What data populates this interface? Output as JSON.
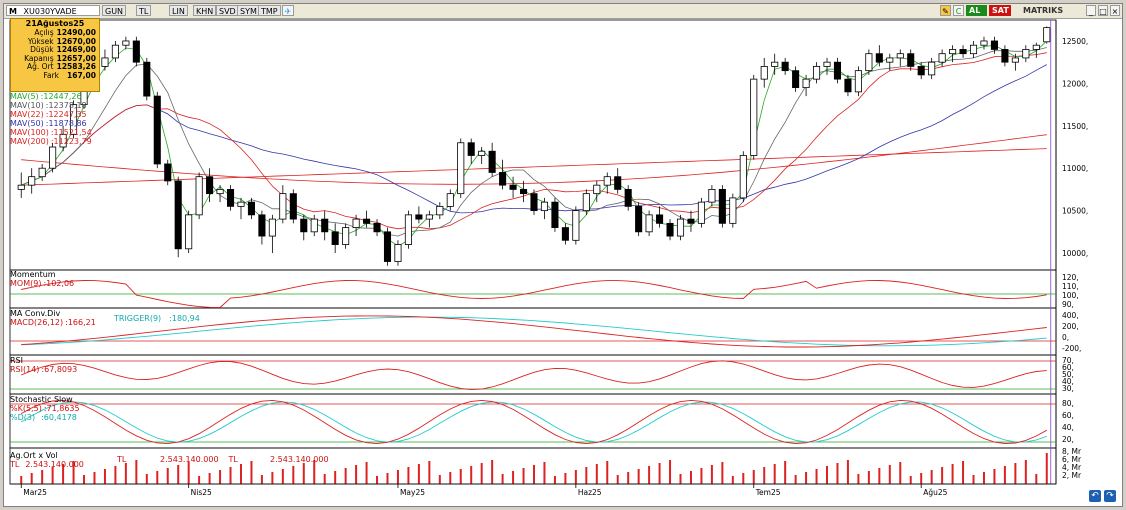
{
  "toolbar": {
    "symbol": "XU030YVADE",
    "m_label": "M",
    "buttons": [
      "GUN",
      "TL",
      "LIN",
      "KHN",
      "SVD",
      "SYM",
      "TMP"
    ],
    "al": "AL",
    "sat": "SAT",
    "brand": "MATRIKS"
  },
  "info": {
    "title": "21Ağustos25",
    "rows": [
      {
        "k": "Açılış",
        "v": "12490,00"
      },
      {
        "k": "Yüksek",
        "v": "12670,00"
      },
      {
        "k": "Düşük",
        "v": "12469,00"
      },
      {
        "k": "Kapanış",
        "v": "12657,00"
      },
      {
        "k": "Ağ. Ort",
        "v": "12583,26"
      },
      {
        "k": "Fark",
        "v": "167,00"
      }
    ]
  },
  "mav_legend": [
    {
      "label": "MAV(5)",
      "value": ":12447,26",
      "color": "#22aa22"
    },
    {
      "label": "MAV(10)",
      "value": ":12378,18",
      "color": "#666666"
    },
    {
      "label": "MAV(22)",
      "value": ":12247,35",
      "color": "#dd2222"
    },
    {
      "label": "MAV(50)",
      "value": ":11878,86",
      "color": "#3333aa"
    },
    {
      "label": "MAV(100)",
      "value": ":11521,54",
      "color": "#dd2222"
    },
    {
      "label": "MAV(200)",
      "value": ":11223,79",
      "color": "#dd2222"
    }
  ],
  "panes": {
    "momentum": {
      "title": "Momentum",
      "line": "MOM(9)",
      "value": ":102,06",
      "ticks": [
        "120,",
        "110,",
        "100,",
        "90,"
      ]
    },
    "macd": {
      "title": "MA Conv.Div",
      "line": "MACD(26,12)",
      "value": ":166,21",
      "trigger": "TRIGGER(9)",
      "trigger_value": ":180,94",
      "ticks": [
        "400,",
        "200,",
        "0,",
        "-200,"
      ]
    },
    "rsi": {
      "title": "RSI",
      "line": "RSI(14)",
      "value": ":67,8093",
      "ticks": [
        "70,",
        "60,",
        "50,",
        "40,",
        "30,"
      ]
    },
    "stoch": {
      "title": "Stochastic Slow",
      "k": "%K(5,5)",
      "k_value": ":71,8635",
      "d": "%D(3)",
      "d_value": ":60,4178",
      "ticks": [
        "80,",
        "60,",
        "40,",
        "20,"
      ]
    },
    "vol": {
      "title": "Ag.Ort x Vol",
      "tl1": "TL",
      "v1": "2.543.140.000",
      "tl2": "TL",
      "v2": "2.543.140.000",
      "tl3": "TL",
      "v3": "2.543.140.000",
      "tl4": "TL",
      "ticks": [
        "8, Mr",
        "6, Mr",
        "4, Mr",
        "2, Mr"
      ]
    }
  },
  "price_ticks": [
    "12500,",
    "12000,",
    "11500,",
    "11000,",
    "10500,",
    "10000,"
  ],
  "x_labels": [
    "Mar25",
    "Nis25",
    "May25",
    "Haz25",
    "Tem25",
    "Ağu25"
  ],
  "colors": {
    "up": "#ffffff",
    "down": "#000000",
    "ma5": "#22aa22",
    "ma10": "#666666",
    "ma22": "#dd2222",
    "ma50": "#3333aa",
    "ma100": "#dd2222",
    "ma200": "#dd2222",
    "macd_trigger": "#22cccc",
    "info_bg": "#f7c743"
  },
  "chart_data": {
    "type": "candlestick",
    "series": [
      {
        "name": "XU030YVADE",
        "ohlc": [
          [
            10750,
            10950,
            10650,
            10800
          ],
          [
            10800,
            11000,
            10700,
            10900
          ],
          [
            10900,
            11050,
            10850,
            11000
          ],
          [
            11000,
            11300,
            10950,
            11250
          ],
          [
            11250,
            11500,
            11200,
            11400
          ],
          [
            11400,
            11800,
            11350,
            11750
          ],
          [
            11750,
            12100,
            11700,
            12050
          ],
          [
            12050,
            12300,
            12000,
            12200
          ],
          [
            12200,
            12400,
            12150,
            12300
          ],
          [
            12300,
            12500,
            12250,
            12450
          ],
          [
            12450,
            12550,
            12400,
            12500
          ],
          [
            12500,
            12550,
            12200,
            12250
          ],
          [
            12250,
            12300,
            11800,
            11850
          ],
          [
            11850,
            11900,
            11000,
            11050
          ],
          [
            11050,
            11100,
            10800,
            10850
          ],
          [
            10850,
            10900,
            9950,
            10050
          ],
          [
            10050,
            10500,
            10000,
            10450
          ],
          [
            10450,
            10950,
            10400,
            10900
          ],
          [
            10900,
            11000,
            10600,
            10700
          ],
          [
            10700,
            10800,
            10600,
            10750
          ],
          [
            10750,
            10800,
            10500,
            10550
          ],
          [
            10550,
            10650,
            10400,
            10600
          ],
          [
            10600,
            10650,
            10400,
            10450
          ],
          [
            10450,
            10500,
            10100,
            10200
          ],
          [
            10200,
            10450,
            10000,
            10400
          ],
          [
            10400,
            10800,
            10350,
            10700
          ],
          [
            10700,
            10750,
            10350,
            10400
          ],
          [
            10400,
            10450,
            10150,
            10250
          ],
          [
            10250,
            10450,
            10200,
            10400
          ],
          [
            10400,
            10500,
            10150,
            10250
          ],
          [
            10250,
            10350,
            10000,
            10100
          ],
          [
            10100,
            10350,
            10050,
            10300
          ],
          [
            10300,
            10450,
            10200,
            10400
          ],
          [
            10400,
            10500,
            10300,
            10350
          ],
          [
            10350,
            10400,
            10200,
            10250
          ],
          [
            10250,
            10300,
            9850,
            9900
          ],
          [
            9900,
            10150,
            9850,
            10100
          ],
          [
            10100,
            10500,
            10050,
            10450
          ],
          [
            10450,
            10550,
            10350,
            10400
          ],
          [
            10400,
            10500,
            10300,
            10450
          ],
          [
            10450,
            10600,
            10400,
            10550
          ],
          [
            10550,
            10750,
            10500,
            10700
          ],
          [
            10700,
            11350,
            10650,
            11300
          ],
          [
            11300,
            11350,
            11050,
            11150
          ],
          [
            11150,
            11250,
            11050,
            11200
          ],
          [
            11200,
            11300,
            10900,
            10950
          ],
          [
            10950,
            11100,
            10750,
            10800
          ],
          [
            10800,
            10900,
            10650,
            10750
          ],
          [
            10750,
            10850,
            10600,
            10700
          ],
          [
            10700,
            10750,
            10450,
            10500
          ],
          [
            10500,
            10650,
            10400,
            10600
          ],
          [
            10600,
            10650,
            10250,
            10300
          ],
          [
            10300,
            10350,
            10100,
            10150
          ],
          [
            10150,
            10550,
            10100,
            10500
          ],
          [
            10500,
            10750,
            10450,
            10700
          ],
          [
            10700,
            10850,
            10600,
            10800
          ],
          [
            10800,
            10950,
            10700,
            10900
          ],
          [
            10900,
            11000,
            10700,
            10750
          ],
          [
            10750,
            10800,
            10500,
            10550
          ],
          [
            10550,
            10600,
            10200,
            10250
          ],
          [
            10250,
            10500,
            10200,
            10450
          ],
          [
            10450,
            10550,
            10300,
            10350
          ],
          [
            10350,
            10400,
            10150,
            10200
          ],
          [
            10200,
            10450,
            10150,
            10400
          ],
          [
            10400,
            10500,
            10250,
            10350
          ],
          [
            10350,
            10650,
            10300,
            10600
          ],
          [
            10600,
            10800,
            10550,
            10750
          ],
          [
            10750,
            10800,
            10300,
            10350
          ],
          [
            10350,
            10700,
            10300,
            10650
          ],
          [
            10650,
            11200,
            10600,
            11150
          ],
          [
            11150,
            12100,
            11100,
            12050
          ],
          [
            12050,
            12300,
            11950,
            12200
          ],
          [
            12200,
            12350,
            12100,
            12250
          ],
          [
            12250,
            12300,
            12100,
            12150
          ],
          [
            12150,
            12200,
            11900,
            11950
          ],
          [
            11950,
            12100,
            11850,
            12050
          ],
          [
            12050,
            12250,
            12000,
            12200
          ],
          [
            12200,
            12300,
            12100,
            12250
          ],
          [
            12250,
            12300,
            12000,
            12050
          ],
          [
            12050,
            12100,
            11850,
            11900
          ],
          [
            11900,
            12200,
            11850,
            12150
          ],
          [
            12150,
            12400,
            12100,
            12350
          ],
          [
            12350,
            12450,
            12200,
            12250
          ],
          [
            12250,
            12350,
            12150,
            12300
          ],
          [
            12300,
            12400,
            12200,
            12350
          ],
          [
            12350,
            12400,
            12150,
            12200
          ],
          [
            12200,
            12250,
            12050,
            12100
          ],
          [
            12100,
            12300,
            12050,
            12250
          ],
          [
            12250,
            12400,
            12200,
            12350
          ],
          [
            12350,
            12450,
            12250,
            12400
          ],
          [
            12400,
            12450,
            12300,
            12350
          ],
          [
            12350,
            12500,
            12300,
            12450
          ],
          [
            12450,
            12550,
            12400,
            12500
          ],
          [
            12500,
            12550,
            12350,
            12400
          ],
          [
            12400,
            12450,
            12200,
            12250
          ],
          [
            12250,
            12350,
            12150,
            12300
          ],
          [
            12300,
            12450,
            12250,
            12400
          ],
          [
            12400,
            12480,
            12300,
            12450
          ],
          [
            12490,
            12670,
            12469,
            12657
          ]
        ]
      }
    ],
    "x_axis_labels": [
      "Mar25",
      "Nis25",
      "May25",
      "Haz25",
      "Tem25",
      "Ağu25"
    ],
    "ylim": [
      9800,
      12700
    ]
  }
}
